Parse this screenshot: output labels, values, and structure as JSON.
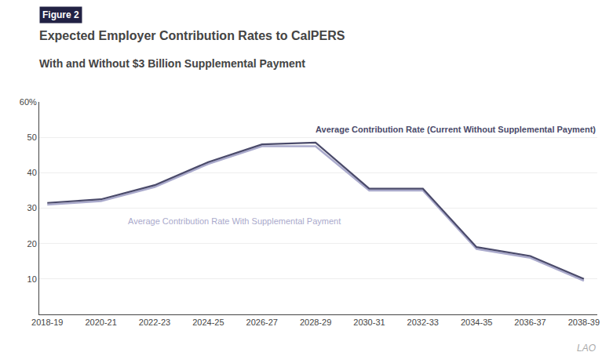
{
  "chart_data": {
    "type": "line",
    "figure_label": "Figure 2",
    "title": "Expected Employer Contribution Rates to CalPERS",
    "subtitle": "With and Without $3 Billion Supplemental Payment",
    "x": [
      0,
      2,
      4,
      6,
      8,
      10,
      12,
      14,
      16,
      18,
      20
    ],
    "xlim": [
      -0.3,
      20.5
    ],
    "xticks": [
      {
        "value": 0,
        "label": "2018-19"
      },
      {
        "value": 2,
        "label": "2020-21"
      },
      {
        "value": 4,
        "label": "2022-23"
      },
      {
        "value": 6,
        "label": "2024-25"
      },
      {
        "value": 8,
        "label": "2026-27"
      },
      {
        "value": 10,
        "label": "2028-29"
      },
      {
        "value": 12,
        "label": "2030-31"
      },
      {
        "value": 14,
        "label": "2032-33"
      },
      {
        "value": 16,
        "label": "2034-35"
      },
      {
        "value": 18,
        "label": "2036-37"
      },
      {
        "value": 20,
        "label": "2038-39"
      }
    ],
    "series": [
      {
        "color": "#aaaacc",
        "values": [
          31.0,
          32.0,
          36.0,
          42.5,
          47.5,
          47.5,
          35.0,
          35.0,
          18.5,
          16.0,
          9.5
        ]
      },
      {
        "color": "#4a4a6a",
        "values": [
          31.5,
          32.5,
          36.5,
          43.0,
          48.0,
          48.5,
          35.5,
          35.5,
          19.0,
          16.5,
          10.0
        ]
      }
    ],
    "ylim": [
      0,
      60
    ],
    "yticks": [
      10,
      20,
      30,
      40,
      50,
      {
        "value": 60,
        "label": "60%"
      }
    ],
    "grid": "y",
    "annotations": [
      {
        "text": "Average Contribution Rate (Current Without Supplemental Payment)",
        "color": "#4a4a6a"
      },
      {
        "text": "Average Contribution Rate With Supplemental Payment",
        "color": "#aaaacc"
      }
    ],
    "watermark": "LAO"
  }
}
